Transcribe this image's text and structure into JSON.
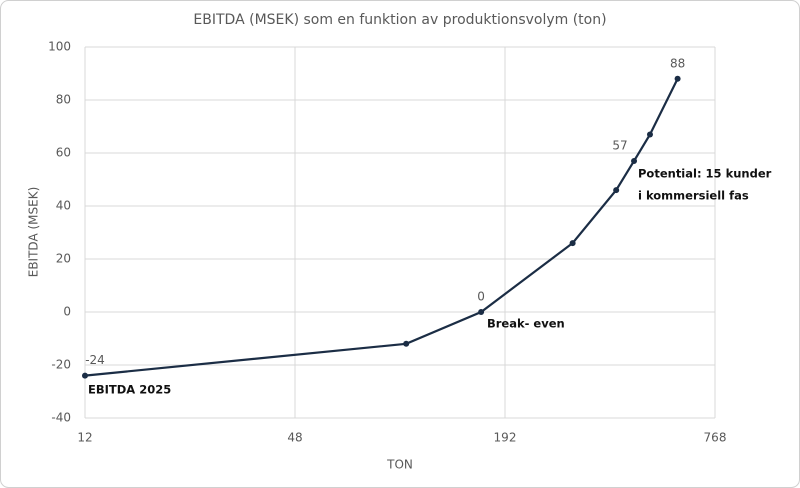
{
  "chart_data": {
    "type": "line",
    "title": "EBITDA (MSEK) som en funktion av produktionsvolym (ton)",
    "x_label": "TON",
    "y_label": "EBITDA  (MSEK)",
    "x": [
      12,
      100,
      164,
      300,
      400,
      450,
      500,
      600
    ],
    "series": [
      {
        "name": "EBITDA",
        "color": "#1b2d45",
        "values": [
          -24,
          -12,
          0,
          26,
          46,
          57,
          67,
          88
        ],
        "value_labels": [
          "-24",
          null,
          "0",
          null,
          null,
          "57",
          null,
          "88"
        ]
      }
    ],
    "annotations": [
      "EBITDA 2025",
      "Break- even",
      [
        "Potential: 15 kunder",
        "i kommersiell fas"
      ]
    ],
    "xscale": "log",
    "xlim": [
      12,
      768
    ],
    "xticks": [
      12,
      48,
      192,
      768
    ],
    "ylim": [
      -40,
      100
    ],
    "yticks": [
      -40,
      -20,
      0,
      20,
      40,
      60,
      80,
      100
    ],
    "grid": true
  }
}
